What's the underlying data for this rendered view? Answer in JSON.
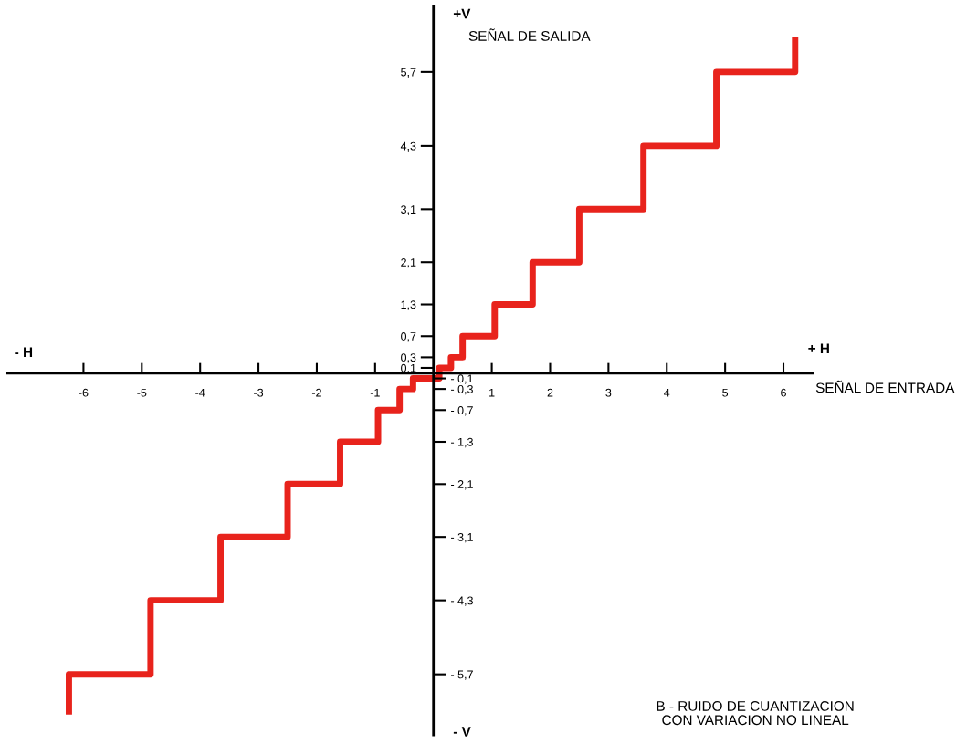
{
  "chart_data": {
    "type": "step",
    "xlabel": "SEÑAL DE ENTRADA",
    "x": [
      -6.25,
      -6.25,
      -4.85,
      -3.65,
      -2.5,
      -1.6,
      -0.95,
      -0.58,
      -0.35,
      -0.1,
      0.1,
      0.3,
      0.5,
      1.05,
      1.7,
      2.5,
      3.6,
      4.85,
      6.2
    ],
    "series": [
      {
        "color": "#e8231c",
        "values": [
          -6.4,
          -5.7,
          -4.3,
          -3.1,
          -2.1,
          -1.3,
          -0.7,
          -0.3,
          -0.1,
          -0.1,
          0.1,
          0.3,
          0.7,
          1.3,
          2.1,
          3.1,
          4.3,
          5.7,
          6.3
        ]
      }
    ],
    "xlim": [
      -7.3,
      6.5
    ],
    "ylim": [
      -6.85,
      6.95
    ],
    "y2lim": [
      -6.85,
      6.95
    ],
    "xticks": [
      -6,
      -5,
      -4,
      -3,
      -2,
      -1,
      1,
      2,
      3,
      4,
      5,
      6
    ],
    "yticks": [
      {
        "value": 0.1,
        "label": "0,1"
      },
      {
        "value": 0.3,
        "label": "0,3"
      },
      {
        "value": 0.7,
        "label": "0,7"
      },
      {
        "value": 1.3,
        "label": "1,3"
      },
      {
        "value": 2.1,
        "label": "2,1"
      },
      {
        "value": 3.1,
        "label": "3,1"
      },
      {
        "value": 4.3,
        "label": "4,3"
      },
      {
        "value": 5.7,
        "label": "5,7"
      }
    ],
    "y2ticks": [
      {
        "value": -0.1,
        "label": "- 0,1"
      },
      {
        "value": -0.3,
        "label": "- 0,3"
      },
      {
        "value": -0.7,
        "label": "- 0,7"
      },
      {
        "value": -1.3,
        "label": "- 1,3"
      },
      {
        "value": -2.1,
        "label": "- 2,1"
      },
      {
        "value": -3.1,
        "label": "- 3,1"
      },
      {
        "value": -4.3,
        "label": "- 4,3"
      },
      {
        "value": -5.7,
        "label": "- 5,7"
      }
    ],
    "annotations": [
      "+V",
      "SEÑAL DE SALIDA",
      "- V",
      "- H",
      "+ H",
      "B - RUIDO DE CUANTIZACION\nCON VARIACION NO LINEAL"
    ],
    "grid": false,
    "legend": false
  }
}
